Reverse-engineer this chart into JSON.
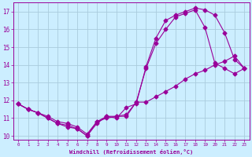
{
  "title": "Windchill (Refroidissement éolien,°C)",
  "bg_color": "#cceeff",
  "grid_color": "#aaccdd",
  "line_color": "#990099",
  "xlim": [
    -0.5,
    23.5
  ],
  "ylim": [
    9.8,
    17.5
  ],
  "xticks": [
    0,
    1,
    2,
    3,
    4,
    5,
    6,
    7,
    8,
    9,
    10,
    11,
    12,
    13,
    14,
    15,
    16,
    17,
    18,
    19,
    20,
    21,
    22,
    23
  ],
  "yticks": [
    10,
    11,
    12,
    13,
    14,
    15,
    16,
    17
  ],
  "line1_x": [
    0,
    1,
    2,
    3,
    4,
    5,
    6,
    7,
    8,
    9,
    10,
    11,
    12,
    13,
    14,
    15,
    16,
    17,
    18,
    19,
    20,
    21,
    22,
    23
  ],
  "line1_y": [
    11.8,
    11.5,
    11.3,
    11.0,
    10.7,
    10.6,
    10.4,
    10.0,
    10.8,
    11.1,
    11.0,
    11.6,
    11.8,
    13.9,
    15.5,
    16.5,
    16.8,
    17.0,
    17.2,
    17.1,
    16.8,
    15.8,
    14.3,
    13.8
  ],
  "line2_x": [
    0,
    1,
    2,
    3,
    4,
    5,
    6,
    7,
    8,
    9,
    10,
    11,
    12,
    13,
    14,
    15,
    16,
    17,
    18,
    19,
    20,
    21,
    22,
    23
  ],
  "line2_y": [
    11.8,
    11.5,
    11.3,
    11.0,
    10.7,
    10.5,
    10.4,
    10.0,
    10.7,
    11.1,
    11.1,
    11.1,
    11.9,
    13.8,
    15.2,
    16.0,
    16.7,
    16.9,
    17.1,
    16.1,
    14.1,
    13.8,
    13.5,
    13.8
  ],
  "line3_x": [
    0,
    1,
    2,
    3,
    4,
    5,
    6,
    7,
    8,
    9,
    10,
    11,
    12,
    13,
    14,
    15,
    16,
    17,
    18,
    19,
    20,
    21,
    22,
    23
  ],
  "line3_y": [
    11.8,
    11.5,
    11.3,
    11.1,
    10.8,
    10.7,
    10.5,
    10.1,
    10.8,
    11.0,
    11.1,
    11.2,
    11.9,
    11.9,
    12.2,
    12.5,
    12.8,
    13.2,
    13.5,
    13.7,
    14.0,
    14.2,
    14.5,
    13.8
  ]
}
